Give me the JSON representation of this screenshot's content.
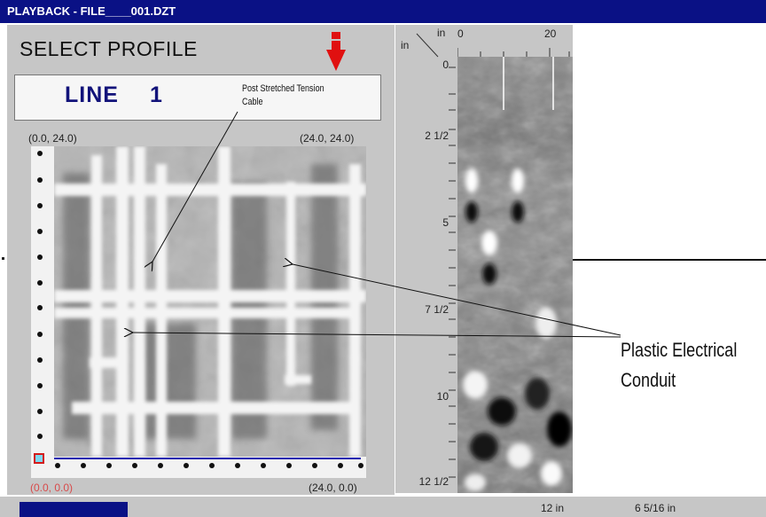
{
  "window": {
    "title": "PLAYBACK - FILE____001.DZT"
  },
  "profile_panel": {
    "heading": "SELECT PROFILE",
    "line_label": "LINE",
    "line_number": "1",
    "annotation_cable_line1": "Post Stretched Tension",
    "annotation_cable_line2": "Cable",
    "corner_top_left": "(0.0, 24.0)",
    "corner_top_right": "(24.0, 24.0)",
    "corner_bottom_left": "(0.0, 0.0)",
    "corner_bottom_right": "(24.0, 0.0)",
    "arrow_color": "#e01010"
  },
  "radar_panel": {
    "unit_left": "in",
    "unit_top": "in",
    "x_tick_start": "0",
    "x_tick_end": "20",
    "depth_ticks": [
      "0",
      "2 1/2",
      "5",
      "7 1/2",
      "10",
      "12 1/2"
    ]
  },
  "annotations": {
    "conduit_line1": "Plastic Electrical",
    "conduit_line2": "Conduit"
  },
  "status_bar": {
    "depth": "12 in",
    "position": "6 5/16 in"
  },
  "colors": {
    "title_bar": "#0a1185",
    "panel": "#c6c6c6",
    "line_text": "#12137a",
    "origin_text": "#d84a4a"
  }
}
